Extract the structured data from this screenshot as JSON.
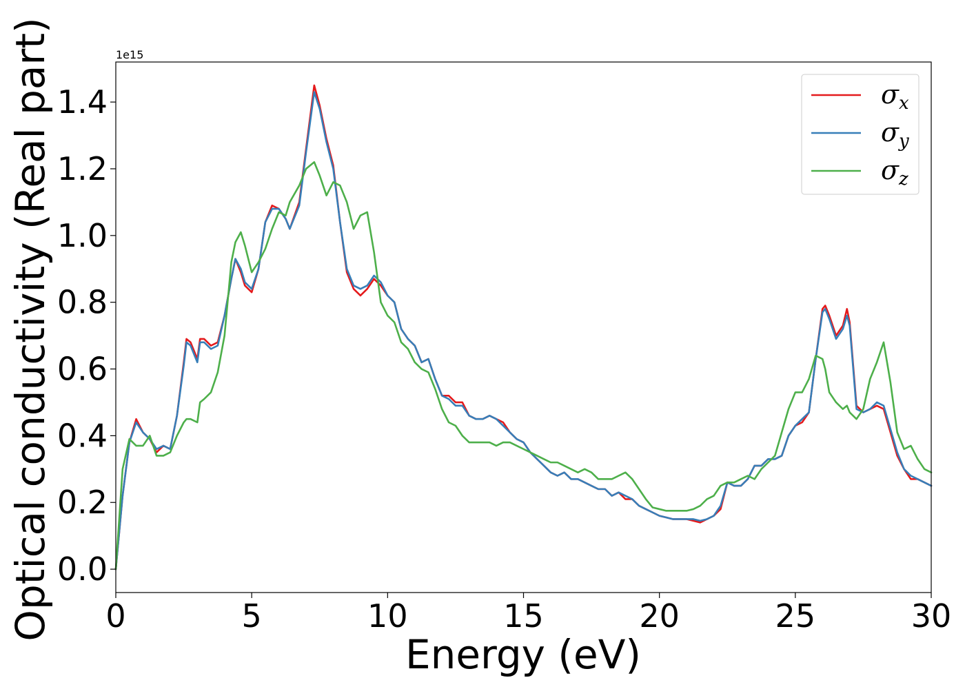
{
  "chart_data": {
    "type": "line",
    "title": "",
    "xlabel": "Energy (eV)",
    "ylabel": "Optical conductivity (Real part)",
    "y_offset_label": "1e15",
    "xlim": [
      0,
      30
    ],
    "ylim": [
      -0.07,
      1.52
    ],
    "xticks": [
      0,
      5,
      10,
      15,
      20,
      25,
      30
    ],
    "xtick_labels": [
      "0",
      "5",
      "10",
      "15",
      "20",
      "25",
      "30"
    ],
    "yticks": [
      0.0,
      0.2,
      0.4,
      0.6,
      0.8,
      1.0,
      1.2,
      1.4
    ],
    "ytick_labels": [
      "0.0",
      "0.2",
      "0.4",
      "0.6",
      "0.8",
      "1.0",
      "1.2",
      "1.4"
    ],
    "grid": false,
    "legend_position": "top-right",
    "x": [
      0,
      0.25,
      0.5,
      0.75,
      1.0,
      1.25,
      1.5,
      1.75,
      2.0,
      2.25,
      2.5,
      2.6,
      2.75,
      3.0,
      3.1,
      3.25,
      3.5,
      3.75,
      4.0,
      4.25,
      4.4,
      4.6,
      4.75,
      5.0,
      5.25,
      5.5,
      5.75,
      6.0,
      6.25,
      6.4,
      6.75,
      7.0,
      7.3,
      7.5,
      7.75,
      8.0,
      8.25,
      8.5,
      8.75,
      9.0,
      9.25,
      9.5,
      9.75,
      10.0,
      10.25,
      10.5,
      10.75,
      11.0,
      11.25,
      11.5,
      11.75,
      12.0,
      12.25,
      12.5,
      12.75,
      13.0,
      13.25,
      13.5,
      13.75,
      14.0,
      14.25,
      14.5,
      14.75,
      15.0,
      15.25,
      15.5,
      15.75,
      16.0,
      16.25,
      16.5,
      16.75,
      17.0,
      17.25,
      17.5,
      17.75,
      18.0,
      18.25,
      18.5,
      18.75,
      19.0,
      19.25,
      19.5,
      19.75,
      20.0,
      20.25,
      20.5,
      20.75,
      21.0,
      21.25,
      21.5,
      21.75,
      22.0,
      22.25,
      22.5,
      22.75,
      23.0,
      23.25,
      23.5,
      23.75,
      24.0,
      24.25,
      24.5,
      24.75,
      25.0,
      25.25,
      25.5,
      25.75,
      26.0,
      26.1,
      26.25,
      26.5,
      26.75,
      26.9,
      27.0,
      27.25,
      27.5,
      27.75,
      28.0,
      28.25,
      28.5,
      28.75,
      29.0,
      29.25,
      29.5,
      29.75,
      30.0
    ],
    "series": [
      {
        "name": "σx",
        "label_base": "σ",
        "label_sub": "x",
        "color": "#e41a1c",
        "values": [
          0.0,
          0.22,
          0.38,
          0.45,
          0.41,
          0.39,
          0.35,
          0.37,
          0.36,
          0.46,
          0.62,
          0.69,
          0.68,
          0.63,
          0.69,
          0.69,
          0.67,
          0.68,
          0.76,
          0.87,
          0.93,
          0.89,
          0.85,
          0.83,
          0.9,
          1.04,
          1.09,
          1.08,
          1.05,
          1.02,
          1.1,
          1.26,
          1.45,
          1.39,
          1.29,
          1.21,
          1.04,
          0.89,
          0.84,
          0.82,
          0.84,
          0.87,
          0.85,
          0.82,
          0.8,
          0.72,
          0.69,
          0.67,
          0.62,
          0.63,
          0.57,
          0.52,
          0.52,
          0.5,
          0.5,
          0.46,
          0.45,
          0.45,
          0.46,
          0.45,
          0.44,
          0.41,
          0.39,
          0.38,
          0.35,
          0.33,
          0.31,
          0.29,
          0.28,
          0.29,
          0.27,
          0.27,
          0.26,
          0.25,
          0.24,
          0.24,
          0.22,
          0.23,
          0.21,
          0.21,
          0.19,
          0.18,
          0.17,
          0.16,
          0.155,
          0.15,
          0.15,
          0.15,
          0.145,
          0.14,
          0.15,
          0.16,
          0.18,
          0.26,
          0.25,
          0.25,
          0.27,
          0.31,
          0.31,
          0.33,
          0.33,
          0.34,
          0.4,
          0.43,
          0.44,
          0.47,
          0.63,
          0.78,
          0.79,
          0.76,
          0.7,
          0.73,
          0.78,
          0.74,
          0.49,
          0.47,
          0.48,
          0.49,
          0.48,
          0.41,
          0.34,
          0.3,
          0.27,
          0.27,
          0.26,
          0.25
        ]
      },
      {
        "name": "σy",
        "label_base": "σ",
        "label_sub": "y",
        "color": "#377eb8",
        "values": [
          0.0,
          0.22,
          0.38,
          0.44,
          0.41,
          0.39,
          0.36,
          0.37,
          0.36,
          0.46,
          0.61,
          0.68,
          0.67,
          0.62,
          0.68,
          0.68,
          0.66,
          0.67,
          0.76,
          0.87,
          0.93,
          0.9,
          0.86,
          0.84,
          0.9,
          1.04,
          1.08,
          1.08,
          1.05,
          1.02,
          1.09,
          1.25,
          1.43,
          1.38,
          1.28,
          1.2,
          1.04,
          0.9,
          0.85,
          0.84,
          0.85,
          0.88,
          0.86,
          0.82,
          0.8,
          0.72,
          0.69,
          0.67,
          0.62,
          0.63,
          0.57,
          0.52,
          0.51,
          0.49,
          0.49,
          0.46,
          0.45,
          0.45,
          0.46,
          0.45,
          0.43,
          0.41,
          0.39,
          0.38,
          0.35,
          0.33,
          0.31,
          0.29,
          0.28,
          0.29,
          0.27,
          0.27,
          0.26,
          0.25,
          0.24,
          0.24,
          0.22,
          0.23,
          0.22,
          0.21,
          0.19,
          0.18,
          0.17,
          0.16,
          0.155,
          0.15,
          0.15,
          0.15,
          0.15,
          0.145,
          0.15,
          0.16,
          0.19,
          0.26,
          0.25,
          0.25,
          0.27,
          0.31,
          0.31,
          0.33,
          0.33,
          0.34,
          0.4,
          0.43,
          0.45,
          0.47,
          0.63,
          0.77,
          0.78,
          0.75,
          0.69,
          0.72,
          0.76,
          0.73,
          0.48,
          0.47,
          0.48,
          0.5,
          0.49,
          0.42,
          0.35,
          0.3,
          0.28,
          0.27,
          0.26,
          0.25
        ]
      },
      {
        "name": "σz",
        "label_base": "σ",
        "label_sub": "z",
        "color": "#4daf4a",
        "values": [
          0.0,
          0.3,
          0.39,
          0.37,
          0.37,
          0.4,
          0.34,
          0.34,
          0.35,
          0.4,
          0.44,
          0.45,
          0.45,
          0.44,
          0.5,
          0.51,
          0.53,
          0.59,
          0.7,
          0.92,
          0.98,
          1.01,
          0.97,
          0.89,
          0.92,
          0.96,
          1.02,
          1.07,
          1.06,
          1.1,
          1.15,
          1.2,
          1.22,
          1.18,
          1.12,
          1.16,
          1.15,
          1.1,
          1.02,
          1.06,
          1.07,
          0.95,
          0.8,
          0.76,
          0.74,
          0.68,
          0.66,
          0.62,
          0.6,
          0.59,
          0.54,
          0.48,
          0.44,
          0.43,
          0.4,
          0.38,
          0.38,
          0.38,
          0.38,
          0.37,
          0.38,
          0.38,
          0.37,
          0.36,
          0.35,
          0.34,
          0.33,
          0.32,
          0.32,
          0.31,
          0.3,
          0.29,
          0.3,
          0.29,
          0.27,
          0.27,
          0.27,
          0.28,
          0.29,
          0.27,
          0.24,
          0.21,
          0.185,
          0.18,
          0.175,
          0.175,
          0.175,
          0.175,
          0.18,
          0.19,
          0.21,
          0.22,
          0.25,
          0.26,
          0.26,
          0.27,
          0.28,
          0.27,
          0.3,
          0.32,
          0.34,
          0.41,
          0.48,
          0.53,
          0.53,
          0.57,
          0.64,
          0.63,
          0.6,
          0.53,
          0.5,
          0.48,
          0.49,
          0.47,
          0.45,
          0.48,
          0.57,
          0.62,
          0.68,
          0.56,
          0.41,
          0.36,
          0.37,
          0.33,
          0.3,
          0.29
        ]
      }
    ]
  }
}
